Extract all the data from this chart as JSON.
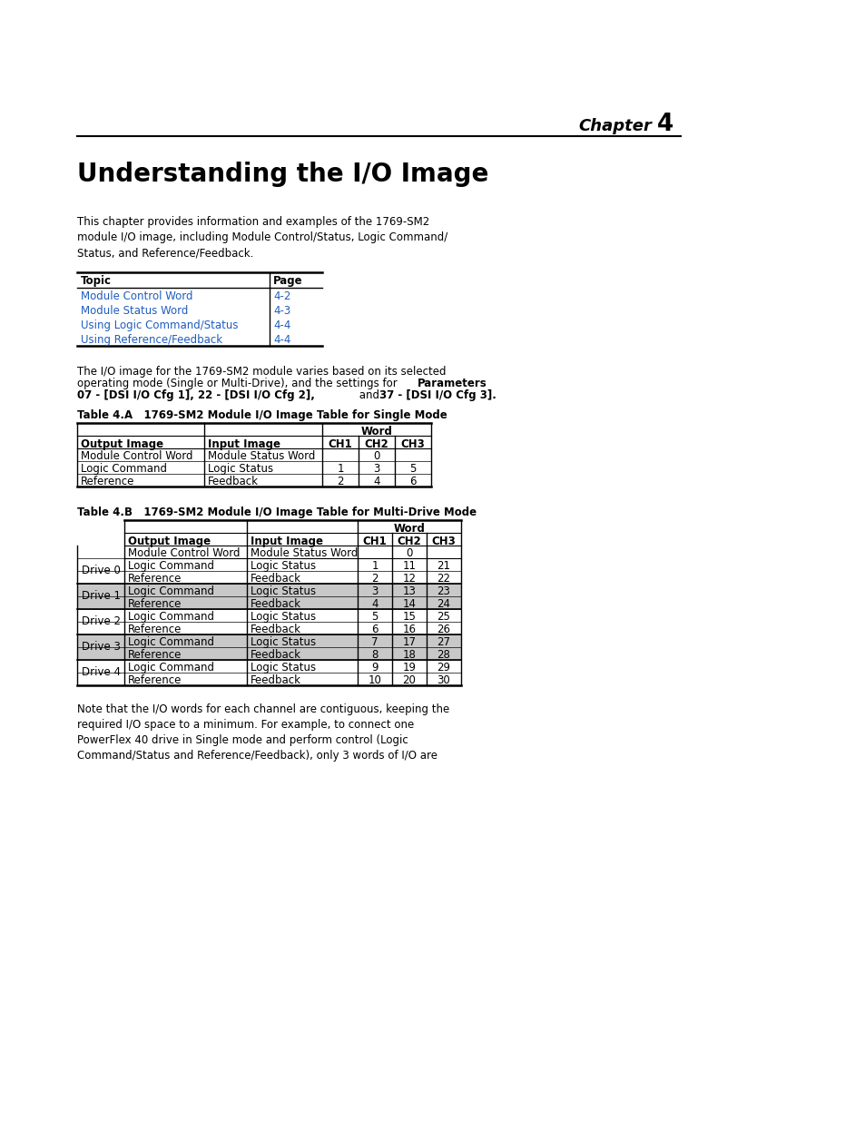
{
  "bg_color": "#ffffff",
  "chapter_text": "Chapter",
  "chapter_num": "4",
  "title": "Understanding the I/O Image",
  "intro_text": "This chapter provides information and examples of the 1769-SM2\nmodule I/O image, including Module Control/Status, Logic Command/\nStatus, and Reference/Feedback.",
  "toc_header": [
    "Topic",
    "Page"
  ],
  "toc_rows": [
    [
      "Module Control Word",
      "4-2"
    ],
    [
      "Module Status Word",
      "4-3"
    ],
    [
      "Using Logic Command/Status",
      "4-4"
    ],
    [
      "Using Reference/Feedback",
      "4-4"
    ]
  ],
  "table_a_title": "Table 4.A   1769-SM2 Module I/O Image Table for Single Mode",
  "table_a_rows": [
    [
      "Module Control Word",
      "Module Status Word",
      "0",
      "",
      ""
    ],
    [
      "Logic Command",
      "Logic Status",
      "1",
      "3",
      "5"
    ],
    [
      "Reference",
      "Feedback",
      "2",
      "4",
      "6"
    ]
  ],
  "table_b_title": "Table 4.B   1769-SM2 Module I/O Image Table for Multi-Drive Mode",
  "table_b_groups": [
    {
      "label": "",
      "rows": [
        [
          "Module Control Word",
          "Module Status Word",
          "0",
          "",
          ""
        ]
      ]
    },
    {
      "label": "Drive 0",
      "rows": [
        [
          "Logic Command",
          "Logic Status",
          "1",
          "11",
          "21"
        ],
        [
          "Reference",
          "Feedback",
          "2",
          "12",
          "22"
        ]
      ]
    },
    {
      "label": "Drive 1",
      "rows": [
        [
          "Logic Command",
          "Logic Status",
          "3",
          "13",
          "23"
        ],
        [
          "Reference",
          "Feedback",
          "4",
          "14",
          "24"
        ]
      ]
    },
    {
      "label": "Drive 2",
      "rows": [
        [
          "Logic Command",
          "Logic Status",
          "5",
          "15",
          "25"
        ],
        [
          "Reference",
          "Feedback",
          "6",
          "16",
          "26"
        ]
      ]
    },
    {
      "label": "Drive 3",
      "rows": [
        [
          "Logic Command",
          "Logic Status",
          "7",
          "17",
          "27"
        ],
        [
          "Reference",
          "Feedback",
          "8",
          "18",
          "28"
        ]
      ]
    },
    {
      "label": "Drive 4",
      "rows": [
        [
          "Logic Command",
          "Logic Status",
          "9",
          "19",
          "29"
        ],
        [
          "Reference",
          "Feedback",
          "10",
          "20",
          "30"
        ]
      ]
    }
  ],
  "note_text": "Note that the I/O words for each channel are contiguous, keeping the\nrequired I/O space to a minimum. For example, to connect one\nPowerFlex 40 drive in Single mode and perform control (Logic\nCommand/Status and Reference/Feedback), only 3 words of I/O are",
  "link_color": "#1f5dbf",
  "gray_row_bg": "#c8c8c8"
}
